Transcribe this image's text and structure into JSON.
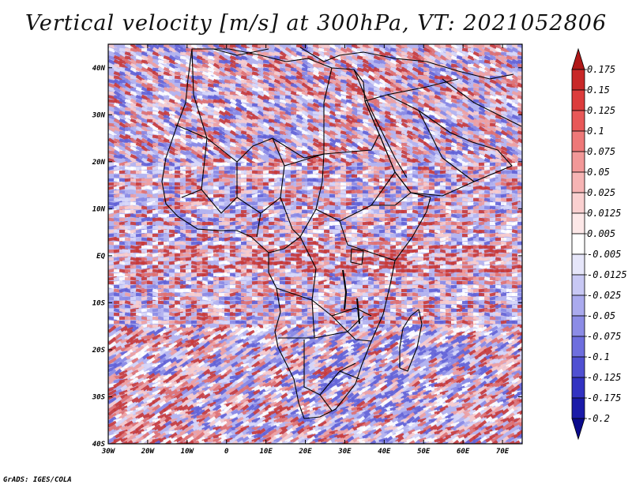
{
  "title": "Vertical velocity [m/s] at 300hPa, VT: 2021052806",
  "credit": "GrADS: IGES/COLA",
  "map": {
    "lon_range": [
      -30,
      75
    ],
    "lat_range": [
      -40,
      45
    ],
    "x_ticks": [
      {
        "value": -30,
        "label": "30W"
      },
      {
        "value": -20,
        "label": "20W"
      },
      {
        "value": -10,
        "label": "10W"
      },
      {
        "value": 0,
        "label": "0"
      },
      {
        "value": 10,
        "label": "10E"
      },
      {
        "value": 20,
        "label": "20E"
      },
      {
        "value": 30,
        "label": "30E"
      },
      {
        "value": 40,
        "label": "40E"
      },
      {
        "value": 50,
        "label": "50E"
      },
      {
        "value": 60,
        "label": "60E"
      },
      {
        "value": 70,
        "label": "70E"
      }
    ],
    "y_ticks": [
      {
        "value": 40,
        "label": "40N"
      },
      {
        "value": 30,
        "label": "30N"
      },
      {
        "value": 20,
        "label": "20N"
      },
      {
        "value": 10,
        "label": "10N"
      },
      {
        "value": 0,
        "label": "EQ"
      },
      {
        "value": -10,
        "label": "10S"
      },
      {
        "value": -20,
        "label": "20S"
      },
      {
        "value": -30,
        "label": "30S"
      },
      {
        "value": -40,
        "label": "40S"
      }
    ]
  },
  "colorbar": {
    "levels": [
      "0.175",
      "0.15",
      "0.125",
      "0.1",
      "0.075",
      "0.05",
      "0.025",
      "0.0125",
      "0.005",
      "-0.005",
      "-0.0125",
      "-0.025",
      "-0.05",
      "-0.075",
      "-0.1",
      "-0.125",
      "-0.175",
      "-0.2"
    ],
    "colors": [
      "#b01818",
      "#c82828",
      "#dc3c3c",
      "#e85858",
      "#ee7878",
      "#f29898",
      "#f6b4b4",
      "#fad0d0",
      "#fde8e8",
      "#ffffff",
      "#e6e6fa",
      "#c8c8f4",
      "#aaaaee",
      "#8c8ce6",
      "#6e6ede",
      "#5050d2",
      "#3232c2",
      "#1a1aa8",
      "#0a0a8c"
    ]
  },
  "field": {
    "colors": [
      "#c83a3a",
      "#e07070",
      "#efa0a0",
      "#f8cccc",
      "#ffffff",
      "#d8d8f8",
      "#b4b4f0",
      "#8888e4",
      "#6262d6"
    ],
    "seed": 20210528
  }
}
